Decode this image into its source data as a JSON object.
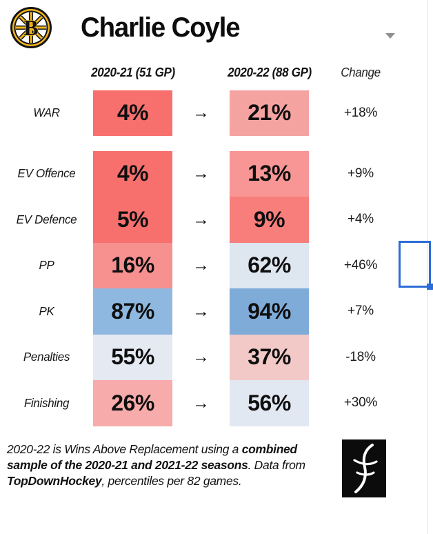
{
  "header": {
    "title": "Charlie Coyle",
    "team_logo": "Boston Bruins",
    "dropdown_icon": "chevron-down"
  },
  "table": {
    "col1_header": "2020-21 (51 GP)",
    "col2_header": "2020-22 (88 GP)",
    "change_header": "Change",
    "arrow": "→",
    "rows": [
      {
        "label": "WAR",
        "values": [
          "4%",
          "21%"
        ],
        "change": "+18%",
        "colors": [
          "#f8706e",
          "#f5a3a1"
        ],
        "gap_after": true
      },
      {
        "label": "EV Offence",
        "values": [
          "4%",
          "13%"
        ],
        "change": "+9%",
        "colors": [
          "#f8706e",
          "#f79694"
        ]
      },
      {
        "label": "EV Defence",
        "values": [
          "5%",
          "9%"
        ],
        "change": "+4%",
        "colors": [
          "#f8706e",
          "#f87e7c"
        ]
      },
      {
        "label": "PP",
        "values": [
          "16%",
          "62%"
        ],
        "change": "+46%",
        "colors": [
          "#f69190",
          "#dee6f0"
        ]
      },
      {
        "label": "PK",
        "values": [
          "87%",
          "94%"
        ],
        "change": "+7%",
        "colors": [
          "#8fb8e0",
          "#7fabd8"
        ]
      },
      {
        "label": "Penalties",
        "values": [
          "55%",
          "37%"
        ],
        "change": "-18%",
        "colors": [
          "#e4e9f2",
          "#f2c9c7"
        ]
      },
      {
        "label": "Finishing",
        "values": [
          "26%",
          "56%"
        ],
        "change": "+30%",
        "colors": [
          "#f7abaa",
          "#e2e8f1"
        ]
      }
    ]
  },
  "chart_data": {
    "type": "table",
    "title": "Charlie Coyle",
    "columns": [
      "2020-21 (51 GP)",
      "2020-22 (88 GP)",
      "Change"
    ],
    "categories": [
      "WAR",
      "EV Offence",
      "EV Defence",
      "PP",
      "PK",
      "Penalties",
      "Finishing"
    ],
    "series": [
      {
        "name": "2020-21 (51 GP)",
        "values": [
          4,
          4,
          5,
          16,
          87,
          55,
          26
        ]
      },
      {
        "name": "2020-22 (88 GP)",
        "values": [
          21,
          13,
          9,
          62,
          94,
          37,
          56
        ]
      },
      {
        "name": "Change",
        "values": [
          18,
          9,
          4,
          46,
          7,
          -18,
          30
        ]
      }
    ],
    "units": "percentile %",
    "color_scale": "red = low percentile, blue = high percentile"
  },
  "footnote": {
    "part1": "2020-22 is Wins Above Replacement using a ",
    "bold1": "combined sample of the 2020-21 and 2021-22 seasons",
    "part2": ". Data from ",
    "bold2": "TopDownHockey",
    "part3": ", percentiles per 82 games."
  },
  "colors": {
    "selection_blue": "#2c6cd6",
    "strong_red": "#f8706e",
    "strong_blue": "#7fabd8",
    "gold": "#f2b51c"
  }
}
